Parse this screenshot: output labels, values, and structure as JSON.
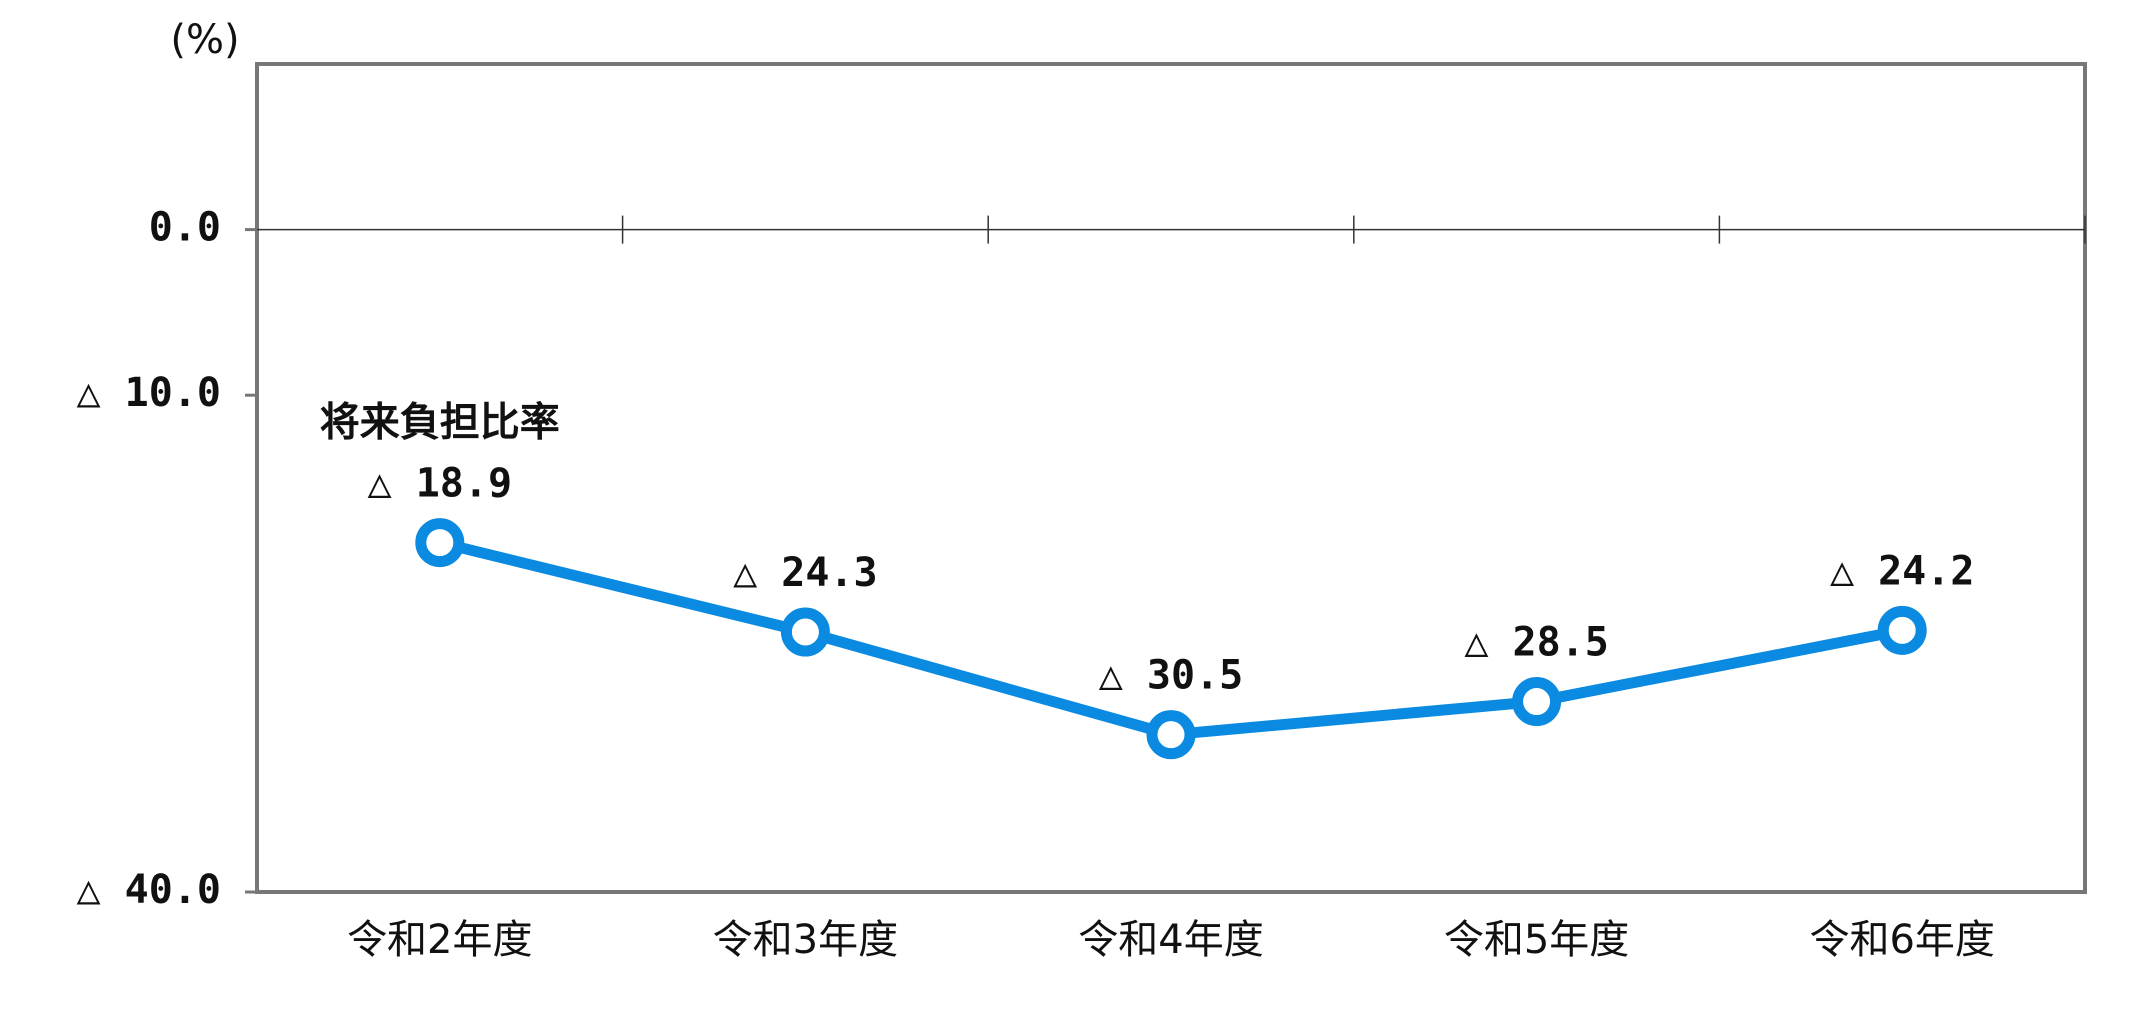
{
  "chart_data": {
    "type": "line",
    "y_axis_label": "(%)",
    "categories": [
      "令和2年度",
      "令和3年度",
      "令和4年度",
      "令和5年度",
      "令和6年度"
    ],
    "series": [
      {
        "name": "将来負担比率",
        "color": "#0a8ae0",
        "values": [
          -18.9,
          -24.3,
          -30.5,
          -28.5,
          -24.2
        ],
        "value_labels": [
          "△ 18.9",
          "△ 24.3",
          "△ 30.5",
          "△ 28.5",
          "△ 24.2"
        ]
      }
    ],
    "ylim": [
      -40,
      10
    ],
    "yticks": [
      {
        "value": 0,
        "label": "0.0"
      },
      {
        "value": -10,
        "label": "△ 10.0"
      },
      {
        "value": -40,
        "label": "△ 40.0"
      }
    ]
  }
}
